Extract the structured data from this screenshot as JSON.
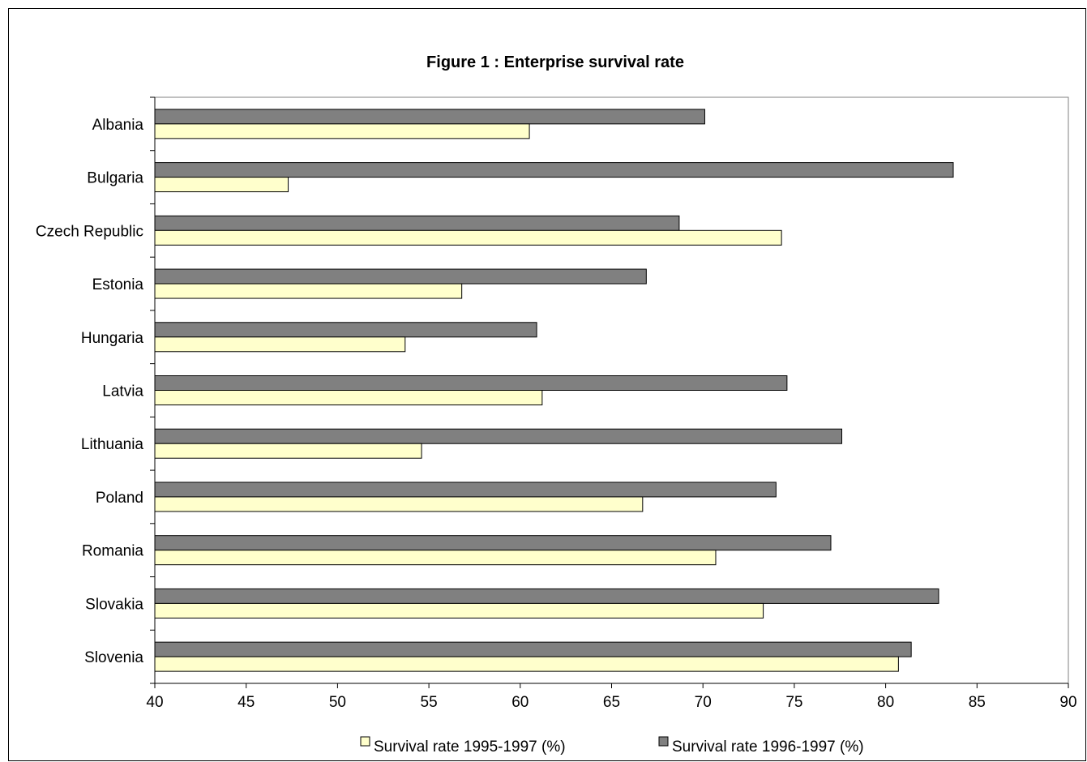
{
  "chart_data": {
    "type": "bar",
    "orientation": "horizontal",
    "title": "Figure 1 : Enterprise survival rate",
    "categories": [
      "Albania",
      "Bulgaria",
      "Czech Republic",
      "Estonia",
      "Hungaria",
      "Latvia",
      "Lithuania",
      "Poland",
      "Romania",
      "Slovakia",
      "Slovenia"
    ],
    "series": [
      {
        "name": "Survival rate 1996-1997 (%)",
        "color": "#808080",
        "values": [
          70.1,
          83.7,
          68.7,
          66.9,
          60.9,
          74.6,
          77.6,
          74.0,
          77.0,
          82.9,
          81.4
        ]
      },
      {
        "name": "Survival rate 1995-1997 (%)",
        "color": "#ffffcc",
        "values": [
          60.5,
          47.3,
          74.3,
          56.8,
          53.7,
          61.2,
          54.6,
          66.7,
          70.7,
          73.3,
          80.7
        ]
      }
    ],
    "xlim": [
      40,
      90
    ],
    "xticks": [
      40,
      45,
      50,
      55,
      60,
      65,
      70,
      75,
      80,
      85,
      90
    ],
    "legend_order": [
      "Survival rate 1995-1997 (%)",
      "Survival rate 1996-1997 (%)"
    ],
    "legend_position": "bottom",
    "grid": false
  }
}
